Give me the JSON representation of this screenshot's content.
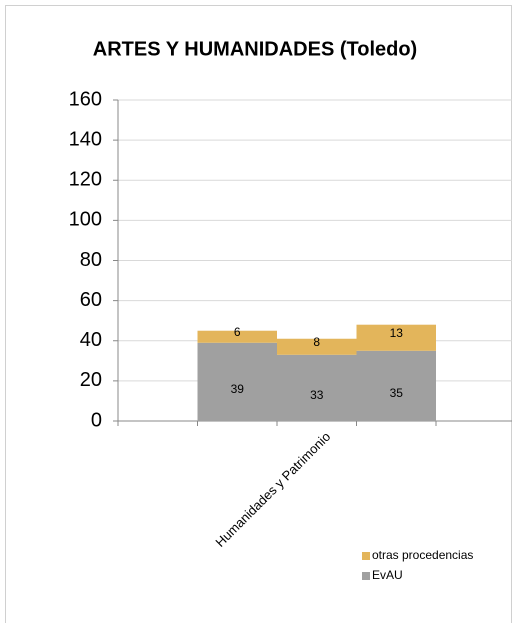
{
  "chart_data": {
    "type": "stacked_bar",
    "title": "ARTES Y HUMANIDADES (Toledo)",
    "categories": [
      null,
      null,
      "Humanidades y Patrimonio",
      null,
      null
    ],
    "series": [
      {
        "name": "EvAU",
        "color": "#a0a0a0",
        "values": [
          null,
          39,
          33,
          35,
          null
        ]
      },
      {
        "name": "otras procedencias",
        "color": "#e3b55b",
        "values": [
          null,
          6,
          8,
          13,
          null
        ]
      }
    ],
    "ylim": [
      0,
      160
    ],
    "yticks": [
      0,
      20,
      40,
      60,
      80,
      100,
      120,
      140,
      160
    ],
    "grid": true,
    "legend": "bottom-right"
  }
}
